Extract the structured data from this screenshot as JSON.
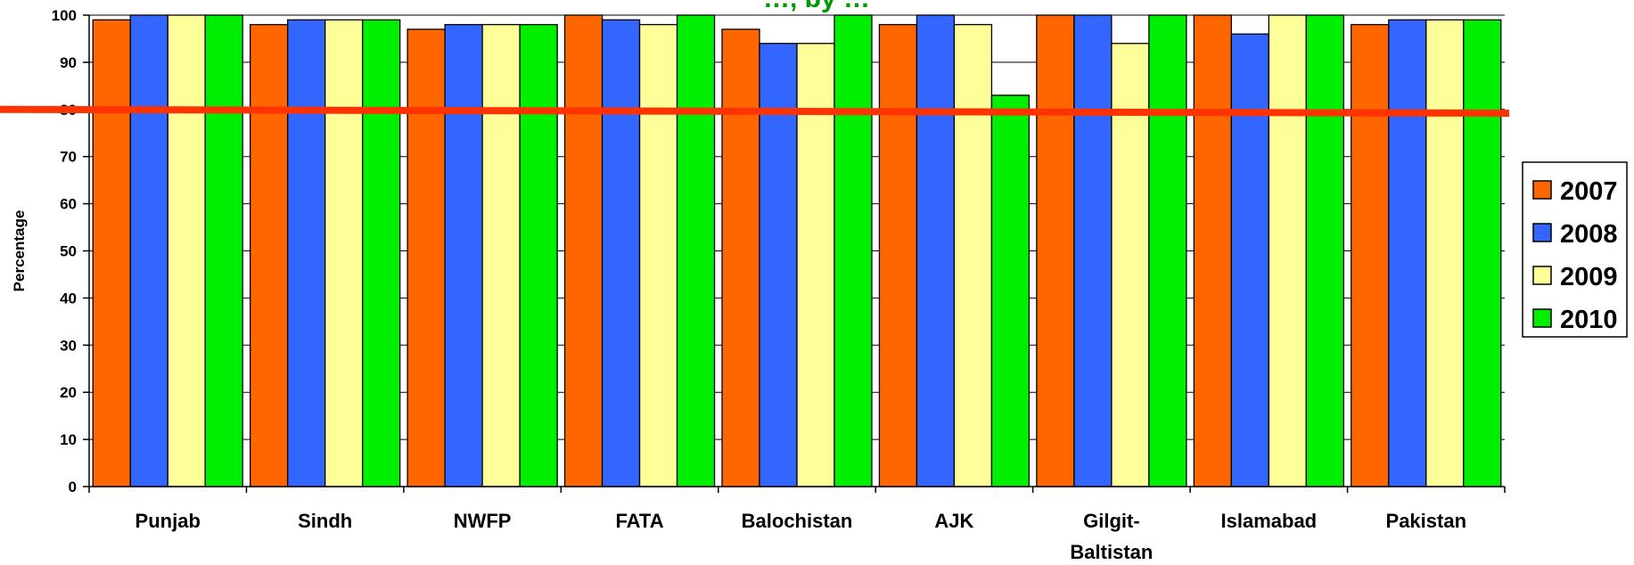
{
  "chart_data": {
    "type": "bar",
    "title": "…, by …",
    "ylabel": "Percentage",
    "xlabel": "",
    "ylim": [
      0,
      100
    ],
    "yticks": [
      0,
      10,
      20,
      30,
      40,
      50,
      60,
      70,
      80,
      90,
      100
    ],
    "categories": [
      "Punjab",
      "Sindh",
      "NWFP",
      "FATA",
      "Balochistan",
      "AJK",
      "Gilgit-Baltistan",
      "Islamabad",
      "Pakistan"
    ],
    "category_label_lines": [
      [
        "Punjab"
      ],
      [
        "Sindh"
      ],
      [
        "NWFP"
      ],
      [
        "FATA"
      ],
      [
        "Balochistan"
      ],
      [
        "AJK"
      ],
      [
        "Gilgit-",
        "Baltistan"
      ],
      [
        "Islamabad"
      ],
      [
        "Pakistan"
      ]
    ],
    "series": [
      {
        "name": "2007",
        "color": "#FF6600",
        "values": [
          99,
          98,
          97,
          100,
          97,
          98,
          100,
          100,
          98
        ]
      },
      {
        "name": "2008",
        "color": "#3366FF",
        "values": [
          100,
          99,
          98,
          99,
          94,
          100,
          100,
          96,
          99
        ]
      },
      {
        "name": "2009",
        "color": "#FFFF99",
        "values": [
          100,
          99,
          98,
          98,
          94,
          98,
          94,
          100,
          99
        ]
      },
      {
        "name": "2010",
        "color": "#00EE00",
        "values": [
          100,
          99,
          98,
          100,
          100,
          83,
          100,
          100,
          99
        ]
      }
    ],
    "reference_line": {
      "value_start": 80,
      "value_end": 79.2,
      "color": "#FF3300"
    },
    "grid": true,
    "legend_position": "right"
  }
}
